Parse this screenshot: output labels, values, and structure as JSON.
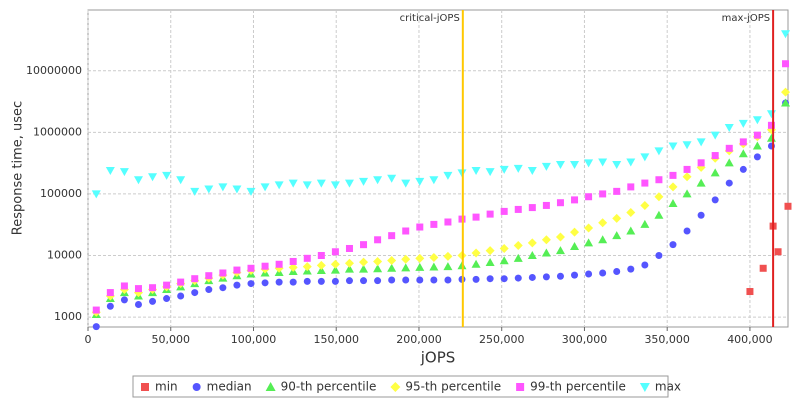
{
  "chart_data": {
    "type": "scatter",
    "xlabel": "jOPS",
    "ylabel": "Response time, usec",
    "xlim": [
      0,
      423000
    ],
    "ylim": [
      690,
      97000000
    ],
    "yscale": "log",
    "grid": true,
    "legend": "bottom",
    "xticks": [
      0,
      {
        "value": 50000,
        "label": "50,000"
      },
      {
        "value": 100000,
        "label": "100,000"
      },
      {
        "value": 150000,
        "label": "150,000"
      },
      {
        "value": 200000,
        "label": "200,000"
      },
      {
        "value": 250000,
        "label": "250,000"
      },
      {
        "value": 300000,
        "label": "300,000"
      },
      {
        "value": 350000,
        "label": "350,000"
      },
      {
        "value": 400000,
        "label": "400,000"
      }
    ],
    "yticks": [
      1000,
      10000,
      100000,
      1000000,
      10000000
    ],
    "markers": [
      {
        "label": "critical-jOPS",
        "x": 226500,
        "color": "#ffc800"
      },
      {
        "label": "max-jOPS",
        "x": 414000,
        "color": "#e02020"
      }
    ],
    "x": [
      5000,
      13500,
      22000,
      30500,
      39000,
      47500,
      56000,
      64500,
      73000,
      81500,
      90000,
      98500,
      107000,
      115500,
      124000,
      132500,
      141000,
      149500,
      158000,
      166500,
      175000,
      183500,
      192000,
      200500,
      209000,
      217500,
      226000,
      234500,
      243000,
      251500,
      260000,
      268500,
      277000,
      285500,
      294000,
      302500,
      311000,
      319500,
      328000,
      336500,
      345000,
      353500,
      362000,
      370500,
      379000,
      387500,
      396000,
      404500,
      413000,
      421500
    ],
    "series": [
      {
        "name": "min",
        "color": "#f05050",
        "marker": "square",
        "x": [
          400000,
          408000,
          414000,
          417000,
          423000
        ],
        "values": [
          2600,
          6200,
          30000,
          11500,
          63000
        ]
      },
      {
        "name": "median",
        "color": "#5555ff",
        "marker": "circle",
        "values": [
          700,
          1500,
          1900,
          1600,
          1800,
          2000,
          2200,
          2500,
          2800,
          3000,
          3300,
          3500,
          3600,
          3700,
          3700,
          3800,
          3800,
          3800,
          3900,
          3900,
          3900,
          4000,
          4000,
          4000,
          4000,
          4000,
          4100,
          4100,
          4200,
          4200,
          4300,
          4400,
          4500,
          4600,
          4800,
          5000,
          5200,
          5500,
          6000,
          7000,
          10000,
          15000,
          25000,
          45000,
          80000,
          150000,
          250000,
          400000,
          600000,
          3000000
        ]
      },
      {
        "name": "90-th percentile",
        "color": "#55ee55",
        "marker": "triangle",
        "values": [
          1100,
          2000,
          2500,
          2200,
          2500,
          2800,
          3100,
          3500,
          3900,
          4300,
          4700,
          5000,
          5200,
          5300,
          5500,
          5600,
          5700,
          5800,
          6000,
          6000,
          6100,
          6200,
          6300,
          6400,
          6500,
          6600,
          6800,
          7200,
          7700,
          8200,
          9000,
          10000,
          11000,
          12000,
          14000,
          16000,
          18000,
          21000,
          25000,
          32000,
          45000,
          70000,
          100000,
          150000,
          220000,
          320000,
          450000,
          600000,
          800000,
          3000000
        ]
      },
      {
        "name": "95-th percentile",
        "color": "#ffff44",
        "marker": "diamond",
        "values": [
          1200,
          2200,
          2800,
          2500,
          2800,
          3100,
          3500,
          3900,
          4300,
          4800,
          5300,
          5700,
          6000,
          6200,
          6400,
          6600,
          6900,
          7200,
          7500,
          7800,
          8000,
          8300,
          8700,
          9000,
          9300,
          9700,
          10000,
          11000,
          12000,
          13000,
          14500,
          16000,
          18000,
          20000,
          24000,
          28000,
          34000,
          40000,
          50000,
          65000,
          90000,
          130000,
          190000,
          270000,
          380000,
          500000,
          650000,
          850000,
          1100000,
          4500000
        ]
      },
      {
        "name": "99-th percentile",
        "color": "#ff55ff",
        "marker": "square",
        "values": [
          1300,
          2500,
          3200,
          2900,
          3000,
          3300,
          3700,
          4200,
          4700,
          5200,
          5800,
          6200,
          6700,
          7200,
          8000,
          9000,
          10000,
          11500,
          13000,
          15000,
          18000,
          21000,
          25000,
          29000,
          32000,
          35000,
          39000,
          42000,
          47000,
          52000,
          56000,
          60000,
          65000,
          72000,
          80000,
          90000,
          100000,
          110000,
          130000,
          150000,
          170000,
          200000,
          250000,
          320000,
          420000,
          550000,
          700000,
          900000,
          1300000,
          13000000
        ]
      },
      {
        "name": "max",
        "color": "#55ffff",
        "marker": "down-triangle",
        "values": [
          100000,
          240000,
          230000,
          170000,
          190000,
          200000,
          170000,
          110000,
          120000,
          130000,
          120000,
          110000,
          130000,
          140000,
          150000,
          140000,
          150000,
          140000,
          150000,
          160000,
          170000,
          180000,
          150000,
          160000,
          170000,
          200000,
          220000,
          240000,
          230000,
          250000,
          260000,
          240000,
          280000,
          300000,
          300000,
          320000,
          330000,
          300000,
          330000,
          400000,
          500000,
          600000,
          630000,
          700000,
          900000,
          1200000,
          1400000,
          1600000,
          2000000,
          40000000
        ]
      }
    ]
  }
}
